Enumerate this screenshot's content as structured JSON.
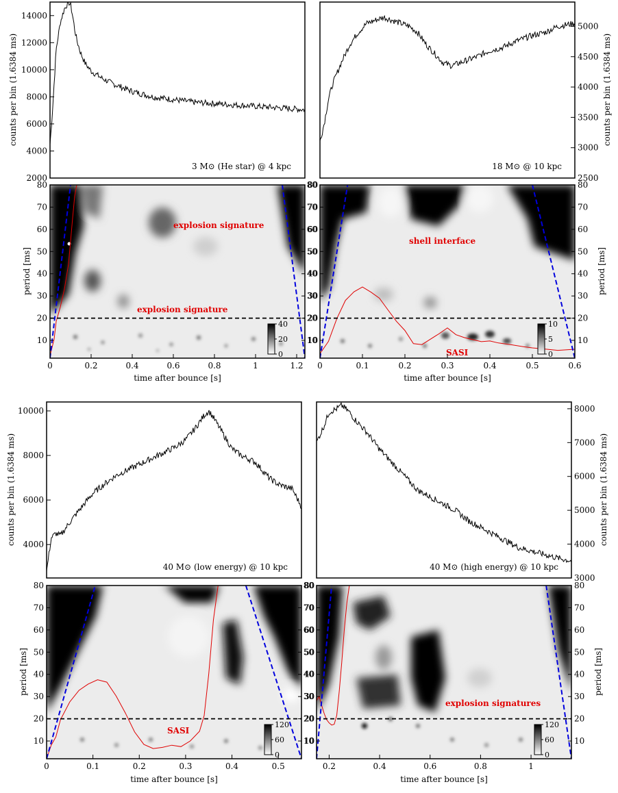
{
  "figure": {
    "counts_ylabel": "counts per bin (1.6384 ms)",
    "period_ylabel": "period [ms]",
    "time_xlabel": "time after bounce [s]",
    "panel_labels": [
      "3 M⊙ (He star) @ 4 kpc",
      "18 M⊙ @ 10 kpc",
      "40 M⊙ (low energy) @ 10 kpc",
      "40 M⊙ (high energy) @ 10 kpc"
    ],
    "annotations": [
      "explosion signature",
      "explosion signature",
      "shell interface",
      "SASI",
      "SASI",
      "explosion signatures"
    ],
    "colors": {
      "line": "#000000",
      "red": "#e00000",
      "blue": "#0000dd",
      "dark": "#000000"
    }
  },
  "chart_data": [
    {
      "type": "line",
      "title": "3 M⊙ (He star) @ 4 kpc",
      "ylabel": "counts per bin (1.6384 ms)",
      "xlim": [
        0,
        1.24
      ],
      "ylim": [
        2000,
        15000
      ],
      "yticks": [
        2000,
        4000,
        6000,
        8000,
        10000,
        12000,
        14000
      ],
      "x": [
        0.0,
        0.01,
        0.02,
        0.03,
        0.05,
        0.07,
        0.09,
        0.1,
        0.11,
        0.12,
        0.13,
        0.15,
        0.17,
        0.2,
        0.25,
        0.3,
        0.35,
        0.4,
        0.5,
        0.6,
        0.7,
        0.8,
        0.9,
        1.0,
        1.1,
        1.2,
        1.24
      ],
      "y": [
        4500,
        6500,
        9000,
        11500,
        13500,
        14500,
        15000,
        14800,
        14000,
        13000,
        12200,
        11200,
        10500,
        9900,
        9400,
        9000,
        8700,
        8400,
        8000,
        7800,
        7600,
        7500,
        7400,
        7300,
        7200,
        7100,
        7050
      ]
    },
    {
      "type": "line",
      "title": "18 M⊙ @ 10 kpc",
      "ylabel": "counts per bin (1.6384 ms)",
      "xlim": [
        0,
        0.6
      ],
      "ylim": [
        2500,
        5400
      ],
      "yticks": [
        2500,
        3000,
        3500,
        4000,
        4500,
        5000
      ],
      "x": [
        0.0,
        0.01,
        0.02,
        0.03,
        0.05,
        0.07,
        0.09,
        0.11,
        0.13,
        0.15,
        0.17,
        0.19,
        0.21,
        0.23,
        0.25,
        0.27,
        0.29,
        0.31,
        0.33,
        0.35,
        0.37,
        0.4,
        0.43,
        0.46,
        0.5,
        0.53,
        0.56,
        0.6
      ],
      "y": [
        3100,
        3400,
        3800,
        4050,
        4400,
        4700,
        4900,
        5050,
        5100,
        5150,
        5100,
        5050,
        5000,
        4900,
        4700,
        4550,
        4400,
        4350,
        4400,
        4450,
        4500,
        4600,
        4650,
        4750,
        4850,
        4900,
        5000,
        5050
      ]
    },
    {
      "type": "line",
      "title": "40 M⊙ (low energy) @ 10 kpc",
      "ylabel": "counts per bin (1.6384 ms)",
      "xlim": [
        0,
        0.55
      ],
      "ylim": [
        2500,
        10400
      ],
      "yticks": [
        4000,
        6000,
        8000,
        10000
      ],
      "x": [
        0.0,
        0.01,
        0.02,
        0.03,
        0.05,
        0.08,
        0.1,
        0.13,
        0.15,
        0.18,
        0.2,
        0.23,
        0.25,
        0.28,
        0.3,
        0.32,
        0.34,
        0.35,
        0.36,
        0.38,
        0.4,
        0.42,
        0.45,
        0.48,
        0.5,
        0.53,
        0.55
      ],
      "y": [
        2800,
        4300,
        4500,
        4400,
        5000,
        5800,
        6300,
        6800,
        7100,
        7400,
        7600,
        7900,
        8100,
        8400,
        8700,
        9200,
        9800,
        10000,
        9700,
        9000,
        8300,
        8000,
        7700,
        7000,
        6700,
        6500,
        5700
      ]
    },
    {
      "type": "line",
      "title": "40 M⊙ (high energy) @ 10 kpc",
      "ylabel": "counts per bin (1.6384 ms)",
      "xlim": [
        0.15,
        1.16
      ],
      "ylim": [
        3000,
        8200
      ],
      "yticks": [
        3000,
        4000,
        5000,
        6000,
        7000,
        8000
      ],
      "x": [
        0.15,
        0.18,
        0.2,
        0.23,
        0.25,
        0.28,
        0.3,
        0.35,
        0.4,
        0.45,
        0.5,
        0.55,
        0.6,
        0.65,
        0.7,
        0.75,
        0.8,
        0.85,
        0.9,
        0.95,
        1.0,
        1.05,
        1.1,
        1.16
      ],
      "y": [
        7000,
        7500,
        7900,
        8000,
        8100,
        7900,
        7700,
        7300,
        6800,
        6400,
        6000,
        5600,
        5400,
        5200,
        5000,
        4700,
        4500,
        4300,
        4100,
        3900,
        3800,
        3700,
        3600,
        3500
      ]
    },
    {
      "type": "heatmap",
      "ylabel": "period [ms]",
      "xlabel": "time after bounce [s]",
      "xlim": [
        0,
        1.24
      ],
      "ylim": [
        2,
        80
      ],
      "xticks": [
        0.0,
        0.2,
        0.4,
        0.6,
        0.8,
        1.0,
        1.2
      ],
      "yticks": [
        10,
        20,
        30,
        40,
        50,
        60,
        70,
        80
      ],
      "colorbar": {
        "ticks": [
          0,
          20,
          40
        ]
      },
      "threshold_line": 20,
      "annotations": [
        "explosion signature",
        "explosion signature"
      ],
      "red_curve": {
        "x": [
          0.0,
          0.02,
          0.03,
          0.05,
          0.07,
          0.09,
          0.1,
          0.11,
          0.12,
          0.13
        ],
        "y": [
          3,
          10,
          18,
          25,
          33,
          44,
          55,
          65,
          75,
          80
        ]
      },
      "blue_left": {
        "x": [
          0.0,
          0.1
        ],
        "y": [
          2,
          80
        ]
      },
      "blue_right": {
        "x": [
          1.13,
          1.24
        ],
        "y": [
          80,
          2
        ]
      }
    },
    {
      "type": "heatmap",
      "ylabel": "period [ms]",
      "xlabel": "time after bounce [s]",
      "xlim": [
        0,
        0.6
      ],
      "ylim": [
        2,
        80
      ],
      "xticks": [
        0.0,
        0.1,
        0.2,
        0.3,
        0.4,
        0.5,
        0.6
      ],
      "yticks": [
        10,
        20,
        30,
        40,
        50,
        60,
        70,
        80
      ],
      "colorbar": {
        "ticks": [
          0,
          5,
          10
        ]
      },
      "threshold_line": 20,
      "annotations": [
        "shell interface",
        "SASI"
      ],
      "red_curve": {
        "x": [
          0.0,
          0.02,
          0.04,
          0.06,
          0.08,
          0.1,
          0.12,
          0.14,
          0.16,
          0.18,
          0.2,
          0.22,
          0.24,
          0.26,
          0.28,
          0.3,
          0.32,
          0.34,
          0.36,
          0.38,
          0.4,
          0.42,
          0.45,
          0.48,
          0.5,
          0.53,
          0.56,
          0.6
        ],
        "y": [
          4,
          10,
          20,
          28,
          32,
          34,
          32,
          29,
          24,
          19,
          14,
          9,
          8,
          10,
          13,
          15,
          13,
          11,
          10,
          9,
          10,
          9,
          8,
          7,
          7,
          6,
          6,
          6
        ]
      },
      "blue_left": {
        "x": [
          0.0,
          0.065
        ],
        "y": [
          2,
          80
        ]
      },
      "blue_right": {
        "x": [
          0.5,
          0.6
        ],
        "y": [
          80,
          2
        ]
      }
    },
    {
      "type": "heatmap",
      "ylabel": "period [ms]",
      "xlabel": "time after bounce [s]",
      "xlim": [
        0,
        0.55
      ],
      "ylim": [
        2,
        80
      ],
      "xticks": [
        0.0,
        0.1,
        0.2,
        0.3,
        0.4,
        0.5
      ],
      "yticks": [
        10,
        20,
        30,
        40,
        50,
        60,
        70,
        80
      ],
      "colorbar": {
        "ticks": [
          0,
          60,
          120
        ]
      },
      "threshold_line": 20,
      "annotations": [
        "SASI"
      ],
      "red_curve": {
        "x": [
          0.0,
          0.01,
          0.02,
          0.03,
          0.05,
          0.07,
          0.09,
          0.11,
          0.13,
          0.15,
          0.17,
          0.19,
          0.21,
          0.23,
          0.25,
          0.27,
          0.29,
          0.31,
          0.33,
          0.34,
          0.35,
          0.36,
          0.37
        ],
        "y": [
          2,
          8,
          12,
          20,
          28,
          33,
          36,
          38,
          36,
          30,
          22,
          14,
          9,
          7,
          7,
          8,
          8,
          10,
          14,
          22,
          40,
          65,
          80
        ]
      },
      "blue_left": {
        "x": [
          0.0,
          0.105
        ],
        "y": [
          2,
          80
        ]
      },
      "blue_right": {
        "x": [
          0.43,
          0.55
        ],
        "y": [
          80,
          2
        ]
      }
    },
    {
      "type": "heatmap",
      "ylabel": "period [ms]",
      "xlabel": "time after bounce [s]",
      "xlim": [
        0.15,
        1.16
      ],
      "ylim": [
        2,
        80
      ],
      "xticks": [
        0.2,
        0.4,
        0.6,
        0.8,
        1.0
      ],
      "yticks": [
        10,
        20,
        30,
        40,
        50,
        60,
        70,
        80
      ],
      "colorbar": {
        "ticks": [
          0,
          60,
          120
        ]
      },
      "threshold_line": 20,
      "annotations": [
        "explosion signatures"
      ],
      "red_curve": {
        "x": [
          0.15,
          0.16,
          0.17,
          0.18,
          0.19,
          0.2,
          0.21,
          0.22,
          0.23,
          0.24,
          0.25,
          0.26,
          0.27,
          0.28
        ],
        "y": [
          28,
          30,
          26,
          22,
          20,
          18,
          17,
          18,
          22,
          32,
          45,
          60,
          72,
          80
        ]
      },
      "blue_left": {
        "x": [
          0.15,
          0.21
        ],
        "y": [
          2,
          80
        ]
      },
      "blue_right": {
        "x": [
          1.06,
          1.16
        ],
        "y": [
          80,
          2
        ]
      }
    }
  ]
}
